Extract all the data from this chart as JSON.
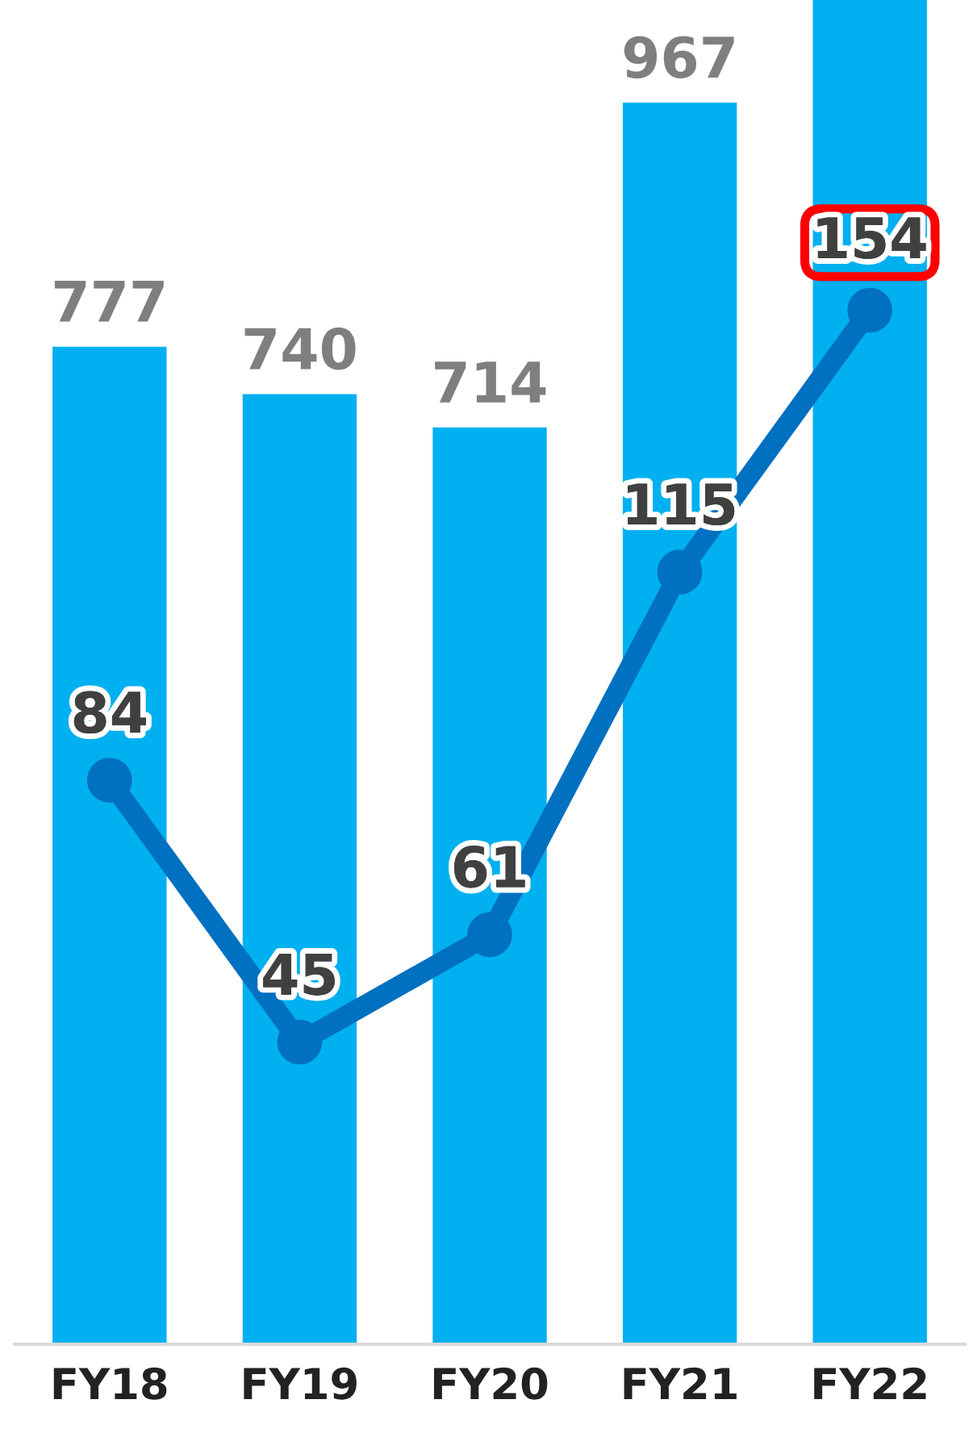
{
  "chart_data": {
    "type": "bar",
    "categories": [
      "FY18",
      "FY19",
      "FY20",
      "FY21",
      "FY22"
    ],
    "series": [
      {
        "color": "#00b0f0",
        "values": [
          777,
          740,
          714,
          967,
          1047
        ],
        "value_labels": [
          "777",
          "740",
          "714",
          "967",
          null
        ]
      },
      {
        "type": "line",
        "axis": "y2",
        "color": "#0070c0",
        "values": [
          84,
          45,
          61,
          115,
          154
        ],
        "marker": "circle",
        "value_labels": [
          "84",
          "45",
          "61",
          "115",
          null
        ]
      }
    ],
    "ylim": [
      0,
      1047
    ],
    "tick_labels": "x",
    "grid": false,
    "legend": false,
    "annotations": [
      "154"
    ]
  }
}
